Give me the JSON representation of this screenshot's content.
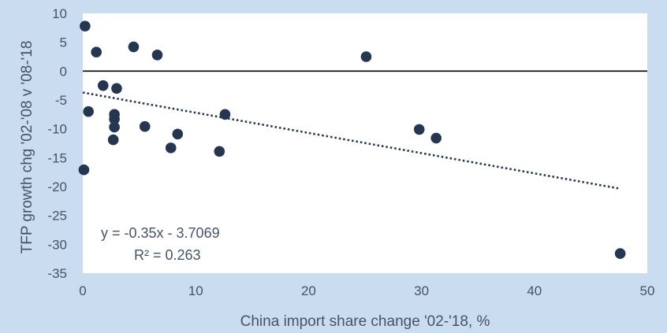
{
  "chart_data": {
    "type": "scatter",
    "xlabel": "China import share change '02-'18, %",
    "ylabel": "TFP growth chg '02-'08 v '08-'18",
    "xlim": [
      0,
      50
    ],
    "ylim": [
      -35,
      10
    ],
    "x_ticks": [
      "0",
      "10",
      "20",
      "30",
      "40",
      "50"
    ],
    "y_ticks": [
      "10",
      "5",
      "0",
      "-5",
      "-10",
      "-15",
      "-20",
      "-25",
      "-30",
      "-35"
    ],
    "grid": false,
    "points": [
      {
        "x": 0.2,
        "y": 7.8
      },
      {
        "x": 1.2,
        "y": 3.3
      },
      {
        "x": 4.5,
        "y": 4.2
      },
      {
        "x": 6.6,
        "y": 2.8
      },
      {
        "x": 25.1,
        "y": 2.5
      },
      {
        "x": 1.8,
        "y": -2.5
      },
      {
        "x": 3.0,
        "y": -3.0
      },
      {
        "x": 0.5,
        "y": -7.0
      },
      {
        "x": 2.8,
        "y": -7.5
      },
      {
        "x": 2.8,
        "y": -8.3
      },
      {
        "x": 2.8,
        "y": -9.7
      },
      {
        "x": 12.6,
        "y": -7.5
      },
      {
        "x": 5.5,
        "y": -9.6
      },
      {
        "x": 8.4,
        "y": -10.9
      },
      {
        "x": 2.7,
        "y": -11.9
      },
      {
        "x": 7.8,
        "y": -13.3
      },
      {
        "x": 12.1,
        "y": -13.9
      },
      {
        "x": 29.8,
        "y": -10.1
      },
      {
        "x": 31.3,
        "y": -11.6
      },
      {
        "x": 0.1,
        "y": -17.1
      },
      {
        "x": 47.6,
        "y": -31.6
      }
    ],
    "trendline": {
      "type": "linear",
      "slope": -0.35,
      "intercept": -3.7069,
      "x_range": [
        0,
        47.6
      ],
      "equation_label": "y = -0.35x - 3.7069",
      "r2_label": "R² = 0.263"
    },
    "colors": {
      "background": "#c9dcf0",
      "plot_area": "#ffffff",
      "marker": "#253650",
      "trendline": "#253650",
      "zero_line": "#000000",
      "text": "#44546a"
    }
  }
}
